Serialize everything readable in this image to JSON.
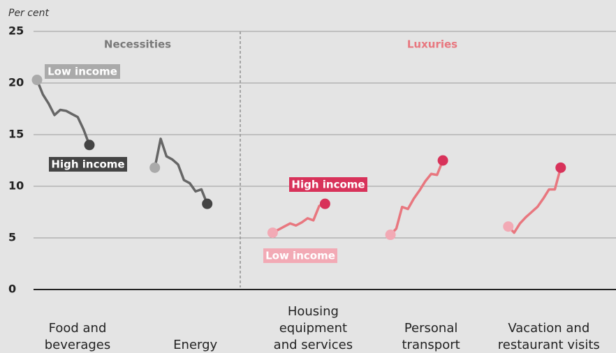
{
  "chart_data": {
    "type": "line",
    "y_label": "Per cent",
    "ylim": [
      0,
      25
    ],
    "yticks": [
      0,
      5,
      10,
      15,
      20,
      25
    ],
    "grid": true,
    "groups": [
      {
        "name": "Necessities",
        "color": "#7a7a7a",
        "line_color": "#666666",
        "start_color": "#aaaaaa",
        "end_color": "#444444",
        "low_label": "Low income",
        "high_label": "High income",
        "series": [
          {
            "name": [
              "Food and",
              "beverages"
            ],
            "values": [
              20.3,
              18.9,
              18.0,
              16.9,
              17.4,
              17.3,
              17.0,
              16.7,
              15.5,
              14.0
            ]
          },
          {
            "name": [
              "Energy"
            ],
            "values": [
              11.8,
              14.6,
              12.9,
              12.6,
              12.1,
              10.6,
              10.3,
              9.5,
              9.7,
              8.3
            ]
          }
        ]
      },
      {
        "name": "Luxuries",
        "color": "#e8777f",
        "line_color": "#e8777f",
        "start_color": "#f2aab5",
        "end_color": "#d8325a",
        "low_label": "Low income",
        "high_label": "High income",
        "series": [
          {
            "name": [
              "Housing",
              "equipment",
              "and services"
            ],
            "values": [
              5.5,
              5.8,
              6.1,
              6.4,
              6.2,
              6.5,
              6.9,
              6.7,
              8.1,
              8.3
            ]
          },
          {
            "name": [
              "Personal",
              "transport"
            ],
            "values": [
              5.3,
              5.9,
              8.0,
              7.8,
              8.8,
              9.6,
              10.5,
              11.2,
              11.1,
              12.5
            ]
          },
          {
            "name": [
              "Vacation and",
              "restaurant visits"
            ],
            "values": [
              6.1,
              5.5,
              6.4,
              7.0,
              7.5,
              8.0,
              8.8,
              9.7,
              9.7,
              11.8
            ]
          }
        ]
      }
    ]
  }
}
